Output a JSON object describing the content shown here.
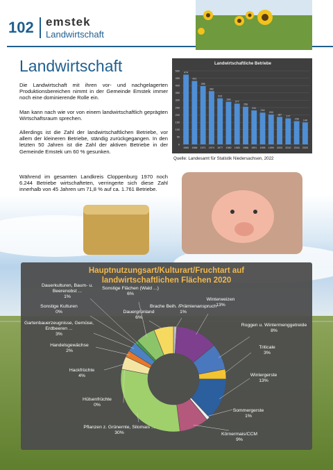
{
  "header": {
    "page_number": "102",
    "brand": "emstek",
    "section": "Landwirtschaft"
  },
  "article": {
    "title": "Landwirtschaft",
    "paragraphs": [
      "Die Landwirtschaft mit ihren vor- und nachgelagerten Produktionsbereichen nimmt in der Gemeinde Emstek immer noch eine dominierende Rolle ein.",
      "Man kann nach wie vor von einem landwirtschaftlich geprägten Wirtschaftsraum sprechen.",
      "Allerdings ist die Zahl der landwirtschaftlichen Betriebe, vor allem der kleineren Betriebe, ständig zurückgegangen. In den letzten 50 Jahren ist die Zahl der aktiven Betriebe in der Gemeinde Emstek um 60 % gesunken.",
      "Während im gesamten Landkreis Cloppenburg 1970 noch 6.244 Betriebe wirtschafteten, verringerte sich diese Zahl innerhalb von 45 Jahren um 71,8 % auf ca. 1.761 Betriebe."
    ]
  },
  "source": "Quelle: Landesamt für Statistik Niedersachsen, 2022",
  "chart_data": [
    {
      "type": "bar",
      "title": "Landwirtschaftliche Betriebe",
      "categories": [
        "1965",
        "1968",
        "1971",
        "1974",
        "1977",
        "1980",
        "1983",
        "1986",
        "1991",
        "1995",
        "1999",
        "2003",
        "2010",
        "2016",
        "2020"
      ],
      "values": [
        474,
        431,
        396,
        362,
        313,
        290,
        277,
        256,
        231,
        216,
        203,
        187,
        177,
        158,
        149
      ],
      "color": "#4f8fd6",
      "ylim": [
        0,
        500
      ],
      "yticks": [
        0,
        50,
        100,
        150,
        200,
        250,
        300,
        350,
        400,
        450,
        500
      ],
      "grid": true
    },
    {
      "type": "donut",
      "title": "Hauptnutzungsart/Kulturart/Fruchtart auf landwirtschaftlichen Flächen 2020",
      "categories": [
        "Brache Beih. /Prämienanspruch",
        "Winterweizen",
        "Roggen u. Wintermenggetreide",
        "Triticale",
        "Wintergerste",
        "Sommergerste",
        "Körnermais/CCM",
        "Pflanzen z. Grünernte, Silomais ...",
        "Hülsenfrüchte",
        "Hackfrüchte",
        "Handelsgewächse",
        "Gartenbauerzeugnisse, Gemüse, Erdbeeren ...",
        "Sonstige Kulturen",
        "Dauerkulturen, Baum- u. Beerenobst ...",
        "Sonstige Flächen (Wald ...)",
        "Dauergrünland"
      ],
      "values": [
        1,
        13,
        8,
        3,
        13,
        1,
        9,
        30,
        0,
        4,
        2,
        3,
        0,
        1,
        6,
        6
      ],
      "value_labels": [
        "1%",
        "13%",
        "8%",
        "3%",
        "13%",
        "1%",
        "9%",
        "30%",
        "0%",
        "4%",
        "2%",
        "3%",
        "0%",
        "1%",
        "6%",
        "6%"
      ],
      "colors": [
        "#bfbfbf",
        "#7e3f8f",
        "#4a78bf",
        "#f4c430",
        "#2c5f9e",
        "#eeeeee",
        "#b4587c",
        "#9fd06c",
        "#7fb04f",
        "#f4e6a2",
        "#e8782a",
        "#4c82c4",
        "#aaaaaa",
        "#3e9a4a",
        "#8cc46a",
        "#f6d95f"
      ]
    }
  ]
}
